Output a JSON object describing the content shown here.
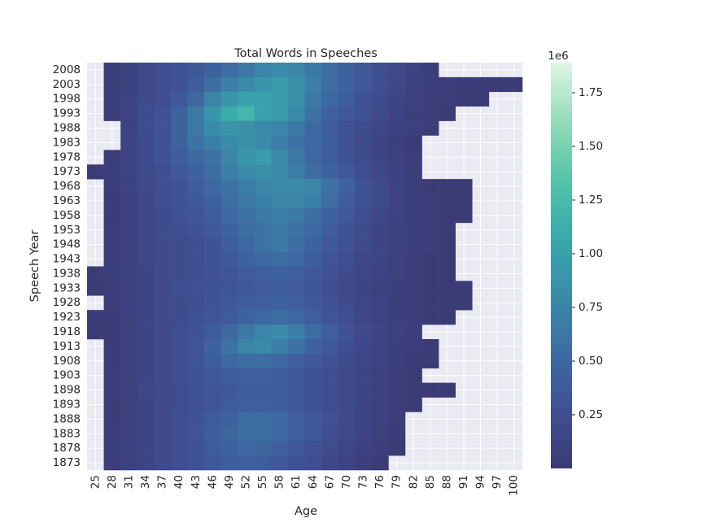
{
  "chart_data": {
    "type": "heatmap",
    "title": "Total Words in Speeches",
    "x_label": "Age",
    "y_label": "Speech Year",
    "categories": [
      25,
      28,
      31,
      34,
      37,
      40,
      43,
      46,
      49,
      52,
      55,
      58,
      61,
      64,
      67,
      70,
      73,
      76,
      79,
      82,
      85,
      88,
      91,
      94,
      97,
      100
    ],
    "rows": [
      2008,
      2003,
      1998,
      1993,
      1988,
      1983,
      1978,
      1973,
      1968,
      1963,
      1958,
      1953,
      1948,
      1943,
      1938,
      1933,
      1928,
      1923,
      1918,
      1913,
      1908,
      1903,
      1898,
      1893,
      1888,
      1883,
      1878,
      1873
    ],
    "values": [
      [
        null,
        0.05,
        0.1,
        0.2,
        0.25,
        0.3,
        0.35,
        0.45,
        0.55,
        0.65,
        0.75,
        0.8,
        0.75,
        0.65,
        0.55,
        0.45,
        0.35,
        0.25,
        0.2,
        0.12,
        0.05,
        null,
        null,
        null,
        null,
        null
      ],
      [
        null,
        0.05,
        0.1,
        0.2,
        0.25,
        0.3,
        0.4,
        0.55,
        0.7,
        0.8,
        0.9,
        0.95,
        0.85,
        0.7,
        0.55,
        0.45,
        0.35,
        0.25,
        0.18,
        0.1,
        0.06,
        0.04,
        0.03,
        0.02,
        0.02,
        0.02
      ],
      [
        null,
        0.05,
        0.12,
        0.2,
        0.25,
        0.35,
        0.5,
        0.75,
        0.9,
        1.0,
        1.0,
        0.95,
        0.85,
        0.65,
        0.5,
        0.4,
        0.3,
        0.22,
        0.15,
        0.08,
        0.05,
        0.04,
        0.03,
        0.02,
        null,
        null
      ],
      [
        null,
        0.04,
        0.12,
        0.22,
        0.3,
        0.45,
        0.65,
        0.9,
        1.1,
        1.2,
        1.0,
        0.95,
        0.8,
        0.6,
        0.45,
        0.35,
        0.28,
        0.2,
        0.12,
        0.06,
        0.04,
        0.03,
        null,
        null,
        null,
        null
      ],
      [
        null,
        null,
        0.12,
        0.22,
        0.3,
        0.45,
        0.65,
        0.8,
        0.9,
        0.85,
        0.8,
        0.75,
        0.65,
        0.5,
        0.4,
        0.3,
        0.22,
        0.16,
        0.1,
        0.06,
        0.04,
        null,
        null,
        null,
        null,
        null
      ],
      [
        null,
        null,
        0.12,
        0.2,
        0.3,
        0.45,
        0.6,
        0.7,
        0.8,
        0.85,
        0.8,
        0.7,
        0.6,
        0.5,
        0.4,
        0.3,
        0.2,
        0.14,
        0.06,
        0.03,
        null,
        null,
        null,
        null,
        null,
        null
      ],
      [
        null,
        0.04,
        0.12,
        0.2,
        0.3,
        0.4,
        0.5,
        0.6,
        0.75,
        0.9,
        0.95,
        0.8,
        0.65,
        0.5,
        0.4,
        0.3,
        0.22,
        0.15,
        0.08,
        0.04,
        null,
        null,
        null,
        null,
        null,
        null
      ],
      [
        0.02,
        0.06,
        0.12,
        0.2,
        0.25,
        0.35,
        0.45,
        0.55,
        0.7,
        0.8,
        0.85,
        0.8,
        0.7,
        0.55,
        0.45,
        0.35,
        0.25,
        0.18,
        0.1,
        0.05,
        null,
        null,
        null,
        null,
        null,
        null
      ],
      [
        null,
        0.04,
        0.12,
        0.2,
        0.25,
        0.3,
        0.4,
        0.5,
        0.6,
        0.7,
        0.75,
        0.8,
        0.8,
        0.75,
        0.6,
        0.45,
        0.3,
        0.2,
        0.12,
        0.05,
        0.02,
        0.02,
        0.02,
        null,
        null,
        null
      ],
      [
        null,
        0.03,
        0.1,
        0.18,
        0.25,
        0.3,
        0.35,
        0.45,
        0.55,
        0.65,
        0.7,
        0.75,
        0.75,
        0.7,
        0.55,
        0.4,
        0.3,
        0.2,
        0.12,
        0.06,
        0.04,
        0.03,
        0.02,
        null,
        null,
        null
      ],
      [
        null,
        0.03,
        0.1,
        0.18,
        0.22,
        0.28,
        0.32,
        0.4,
        0.5,
        0.6,
        0.65,
        0.7,
        0.65,
        0.55,
        0.45,
        0.35,
        0.25,
        0.18,
        0.12,
        0.06,
        0.04,
        0.03,
        0.02,
        null,
        null,
        null
      ],
      [
        null,
        0.04,
        0.1,
        0.18,
        0.22,
        0.25,
        0.3,
        0.35,
        0.45,
        0.55,
        0.6,
        0.65,
        0.6,
        0.5,
        0.4,
        0.3,
        0.22,
        0.15,
        0.1,
        0.06,
        0.04,
        0.03,
        null,
        null,
        null,
        null
      ],
      [
        null,
        0.04,
        0.1,
        0.16,
        0.2,
        0.22,
        0.25,
        0.3,
        0.4,
        0.5,
        0.6,
        0.65,
        0.55,
        0.45,
        0.35,
        0.28,
        0.2,
        0.14,
        0.1,
        0.06,
        0.04,
        0.03,
        null,
        null,
        null,
        null
      ],
      [
        null,
        0.04,
        0.1,
        0.16,
        0.2,
        0.22,
        0.25,
        0.3,
        0.35,
        0.45,
        0.5,
        0.55,
        0.5,
        0.4,
        0.32,
        0.25,
        0.18,
        0.14,
        0.08,
        0.05,
        0.03,
        0.02,
        null,
        null,
        null,
        null
      ],
      [
        0.02,
        0.05,
        0.1,
        0.15,
        0.2,
        0.22,
        0.25,
        0.28,
        0.32,
        0.38,
        0.42,
        0.45,
        0.42,
        0.35,
        0.28,
        0.22,
        0.16,
        0.12,
        0.08,
        0.05,
        0.03,
        0.02,
        null,
        null,
        null,
        null
      ],
      [
        0.02,
        0.04,
        0.1,
        0.15,
        0.2,
        0.25,
        0.28,
        0.3,
        0.32,
        0.35,
        0.38,
        0.4,
        0.38,
        0.32,
        0.26,
        0.2,
        0.15,
        0.1,
        0.06,
        0.04,
        0.03,
        0.02,
        0.02,
        null,
        null,
        null
      ],
      [
        null,
        0.04,
        0.1,
        0.15,
        0.2,
        0.22,
        0.25,
        0.3,
        0.35,
        0.4,
        0.42,
        0.45,
        0.42,
        0.35,
        0.28,
        0.22,
        0.16,
        0.12,
        0.07,
        0.05,
        0.03,
        0.02,
        0.02,
        null,
        null,
        null
      ],
      [
        0.02,
        0.03,
        0.08,
        0.15,
        0.2,
        0.22,
        0.28,
        0.32,
        0.38,
        0.45,
        0.5,
        0.55,
        0.5,
        0.42,
        0.32,
        0.25,
        0.18,
        0.12,
        0.07,
        0.05,
        0.03,
        0.02,
        null,
        null,
        null,
        null
      ],
      [
        0.02,
        0.03,
        0.1,
        0.15,
        0.2,
        0.25,
        0.3,
        0.38,
        0.5,
        0.65,
        0.75,
        0.8,
        0.7,
        0.55,
        0.42,
        0.3,
        0.2,
        0.14,
        0.08,
        0.04,
        null,
        null,
        null,
        null,
        null,
        null
      ],
      [
        null,
        0.03,
        0.1,
        0.15,
        0.2,
        0.25,
        0.32,
        0.45,
        0.6,
        0.75,
        0.8,
        0.7,
        0.6,
        0.45,
        0.35,
        0.26,
        0.18,
        0.12,
        0.07,
        0.04,
        0.02,
        null,
        null,
        null,
        null,
        null
      ],
      [
        null,
        0.03,
        0.1,
        0.15,
        0.2,
        0.25,
        0.32,
        0.4,
        0.5,
        0.55,
        0.55,
        0.5,
        0.42,
        0.35,
        0.28,
        0.22,
        0.16,
        0.12,
        0.06,
        0.03,
        0.02,
        null,
        null,
        null,
        null,
        null
      ],
      [
        null,
        0.04,
        0.1,
        0.15,
        0.2,
        0.25,
        0.3,
        0.35,
        0.4,
        0.42,
        0.42,
        0.4,
        0.35,
        0.3,
        0.25,
        0.2,
        0.15,
        0.1,
        0.05,
        0.02,
        null,
        null,
        null,
        null,
        null,
        null
      ],
      [
        null,
        0.04,
        0.1,
        0.16,
        0.2,
        0.24,
        0.28,
        0.32,
        0.36,
        0.4,
        0.4,
        0.38,
        0.34,
        0.3,
        0.25,
        0.2,
        0.15,
        0.1,
        0.05,
        0.03,
        0.02,
        0.02,
        null,
        null,
        null,
        null
      ],
      [
        null,
        0.02,
        0.08,
        0.15,
        0.2,
        0.24,
        0.28,
        0.32,
        0.38,
        0.42,
        0.42,
        0.4,
        0.35,
        0.3,
        0.25,
        0.2,
        0.14,
        0.1,
        0.05,
        0.02,
        null,
        null,
        null,
        null,
        null,
        null
      ],
      [
        null,
        0.03,
        0.08,
        0.15,
        0.2,
        0.25,
        0.3,
        0.38,
        0.45,
        0.55,
        0.55,
        0.5,
        0.42,
        0.35,
        0.28,
        0.22,
        0.15,
        0.1,
        0.04,
        null,
        null,
        null,
        null,
        null,
        null,
        null
      ],
      [
        null,
        0.04,
        0.08,
        0.15,
        0.2,
        0.25,
        0.32,
        0.4,
        0.48,
        0.55,
        0.55,
        0.5,
        0.42,
        0.35,
        0.25,
        0.2,
        0.14,
        0.08,
        0.03,
        null,
        null,
        null,
        null,
        null,
        null,
        null
      ],
      [
        null,
        0.05,
        0.1,
        0.15,
        0.2,
        0.25,
        0.3,
        0.38,
        0.45,
        0.5,
        0.48,
        0.42,
        0.35,
        0.28,
        0.22,
        0.16,
        0.1,
        0.06,
        0.02,
        null,
        null,
        null,
        null,
        null,
        null,
        null
      ],
      [
        null,
        0.04,
        0.1,
        0.15,
        0.2,
        0.25,
        0.3,
        0.35,
        0.4,
        0.42,
        0.4,
        0.35,
        0.3,
        0.25,
        0.18,
        0.12,
        0.07,
        0.03,
        null,
        null,
        null,
        null,
        null,
        null,
        null,
        null
      ]
    ],
    "colormap": [
      "#3b3a74",
      "#3f4f93",
      "#3d6ca3",
      "#3a8ca9",
      "#38aaac",
      "#55c4a8",
      "#94dcb8",
      "#def5e6"
    ],
    "zlim": [
      0,
      1.89
    ],
    "zticks": [
      0.25,
      {
        "value": 0.5,
        "label": "0.50"
      },
      0.75,
      {
        "value": 1,
        "label": "1.00"
      },
      1.25,
      {
        "value": 1.5,
        "label": "1.50"
      },
      1.75
    ],
    "colorbar_offset": "1e6",
    "grid": true
  }
}
